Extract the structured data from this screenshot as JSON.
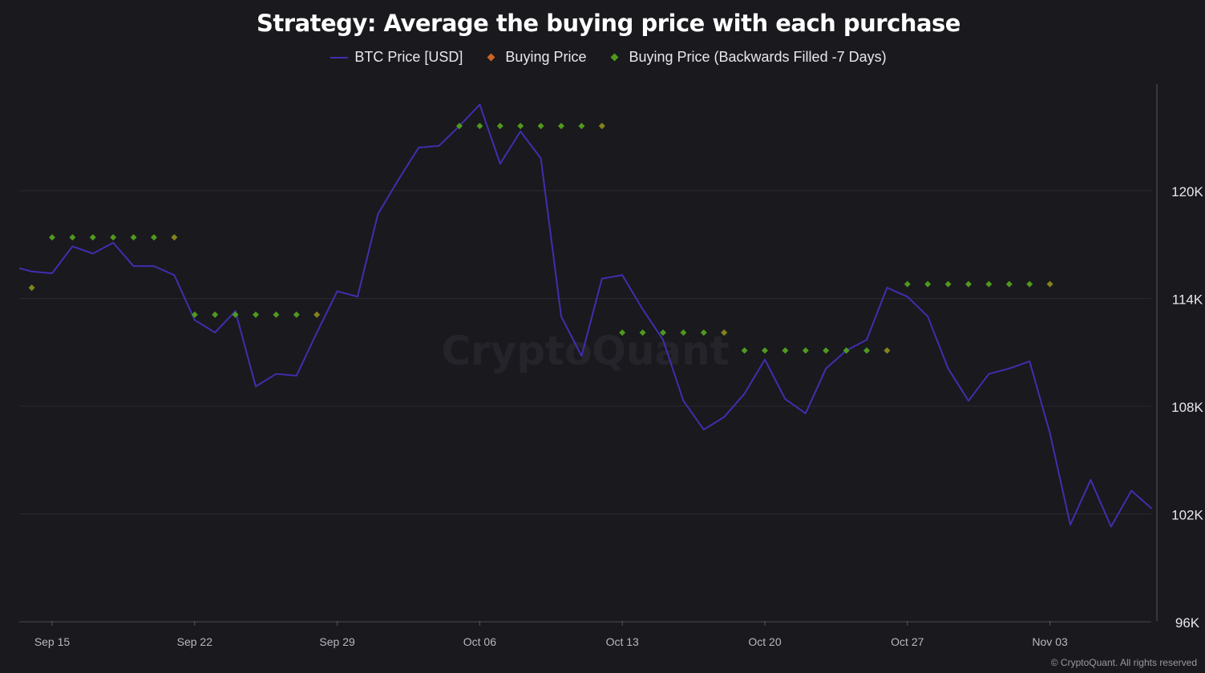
{
  "chart_data": {
    "type": "line",
    "title": "Strategy: Average the buying price with each purchase",
    "legend": [
      "BTC Price [USD]",
      "Buying Price",
      "Buying Price (Backwards Filled -7 Days)"
    ],
    "legend_placement": "top-center",
    "colors": {
      "btc": "#3f2fae",
      "buying": "#c8651e",
      "backfilled": "#4f9a1e",
      "grid": "#2a2930",
      "text": "#e0e0e6"
    },
    "x_start": "Sep 13",
    "x_tick_labels": [
      "Sep 15",
      "Sep 22",
      "Sep 29",
      "Oct 06",
      "Oct 13",
      "Oct 20",
      "Oct 27",
      "Nov 03"
    ],
    "x_tick_day_index": [
      2,
      9,
      16,
      23,
      30,
      37,
      44,
      51
    ],
    "y_tick_labels": [
      "120K",
      "114K",
      "108K",
      "102K",
      "96K"
    ],
    "y_ticks": [
      120,
      114,
      108,
      102,
      96
    ],
    "ylim": [
      96,
      126
    ],
    "y_unit": "K USD",
    "series": [
      {
        "name": "BTC Price [USD]",
        "values": [
          115.8,
          115.5,
          115.4,
          116.9,
          116.5,
          117.1,
          115.8,
          115.8,
          115.3,
          112.8,
          112.1,
          113.3,
          109.1,
          109.8,
          109.7,
          112.1,
          114.4,
          114.1,
          118.7,
          120.6,
          122.4,
          122.5,
          123.6,
          124.8,
          121.5,
          123.3,
          121.8,
          113.0,
          110.8,
          115.1,
          115.3,
          113.4,
          111.7,
          108.3,
          106.7,
          107.4,
          108.7,
          110.6,
          108.4,
          107.6,
          110.1,
          111.1,
          111.7,
          114.6,
          114.1,
          113.0,
          110.1,
          108.3,
          109.8,
          110.1,
          110.5,
          106.5,
          101.4,
          103.9,
          101.3,
          103.3,
          102.3
        ]
      },
      {
        "name": "Buying Price",
        "points": [
          [
            1,
            114.6
          ],
          [
            8,
            117.4
          ],
          [
            15,
            113.1
          ],
          [
            29,
            123.6
          ],
          [
            35,
            112.1
          ],
          [
            43,
            111.1
          ],
          [
            51,
            114.8
          ]
        ]
      },
      {
        "name": "Buying Price (Backwards Filled -7 Days)",
        "points": [
          [
            1,
            114.6
          ],
          [
            2,
            117.4
          ],
          [
            3,
            117.4
          ],
          [
            4,
            117.4
          ],
          [
            5,
            117.4
          ],
          [
            6,
            117.4
          ],
          [
            7,
            117.4
          ],
          [
            8,
            117.4
          ],
          [
            9,
            113.1
          ],
          [
            10,
            113.1
          ],
          [
            11,
            113.1
          ],
          [
            12,
            113.1
          ],
          [
            13,
            113.1
          ],
          [
            14,
            113.1
          ],
          [
            15,
            113.1
          ],
          [
            22,
            123.6
          ],
          [
            23,
            123.6
          ],
          [
            24,
            123.6
          ],
          [
            25,
            123.6
          ],
          [
            26,
            123.6
          ],
          [
            27,
            123.6
          ],
          [
            28,
            123.6
          ],
          [
            29,
            123.6
          ],
          [
            30,
            112.1
          ],
          [
            31,
            112.1
          ],
          [
            32,
            112.1
          ],
          [
            33,
            112.1
          ],
          [
            34,
            112.1
          ],
          [
            35,
            112.1
          ],
          [
            36,
            111.1
          ],
          [
            37,
            111.1
          ],
          [
            38,
            111.1
          ],
          [
            39,
            111.1
          ],
          [
            40,
            111.1
          ],
          [
            41,
            111.1
          ],
          [
            42,
            111.1
          ],
          [
            43,
            111.1
          ],
          [
            44,
            114.8
          ],
          [
            45,
            114.8
          ],
          [
            46,
            114.8
          ],
          [
            47,
            114.8
          ],
          [
            48,
            114.8
          ],
          [
            49,
            114.8
          ],
          [
            50,
            114.8
          ],
          [
            51,
            114.8
          ]
        ]
      }
    ],
    "watermark": "CryptoQuant"
  },
  "footer": "© CryptoQuant. All rights reserved"
}
